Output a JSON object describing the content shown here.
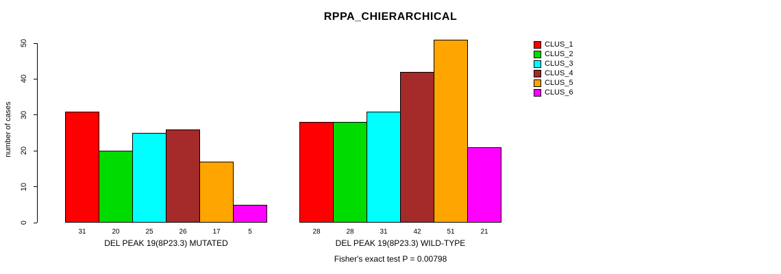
{
  "title": "RPPA_CHIERARCHICAL",
  "chart_data": {
    "type": "bar",
    "title": "RPPA_CHIERARCHICAL",
    "xlabel": "",
    "ylabel": "number of cases",
    "ylim": [
      0,
      51
    ],
    "yticks": [
      0,
      10,
      20,
      30,
      40,
      50
    ],
    "grid": false,
    "legend_position": "top-right",
    "categories": [
      "DEL PEAK 19(8P23.3) MUTATED",
      "DEL PEAK 19(8P23.3) WILD-TYPE"
    ],
    "series": [
      {
        "name": "CLUS_1",
        "color": "#FF0000",
        "values": [
          31,
          28
        ]
      },
      {
        "name": "CLUS_2",
        "color": "#00DB00",
        "values": [
          20,
          28
        ]
      },
      {
        "name": "CLUS_3",
        "color": "#00FFFF",
        "values": [
          25,
          31
        ]
      },
      {
        "name": "CLUS_4",
        "color": "#A52A2A",
        "values": [
          26,
          42
        ]
      },
      {
        "name": "CLUS_5",
        "color": "#FFA500",
        "values": [
          17,
          51
        ]
      },
      {
        "name": "CLUS_6",
        "color": "#FF00FF",
        "values": [
          5,
          21
        ]
      }
    ],
    "annotation": "Fisher's exact test P = 0.00798"
  }
}
